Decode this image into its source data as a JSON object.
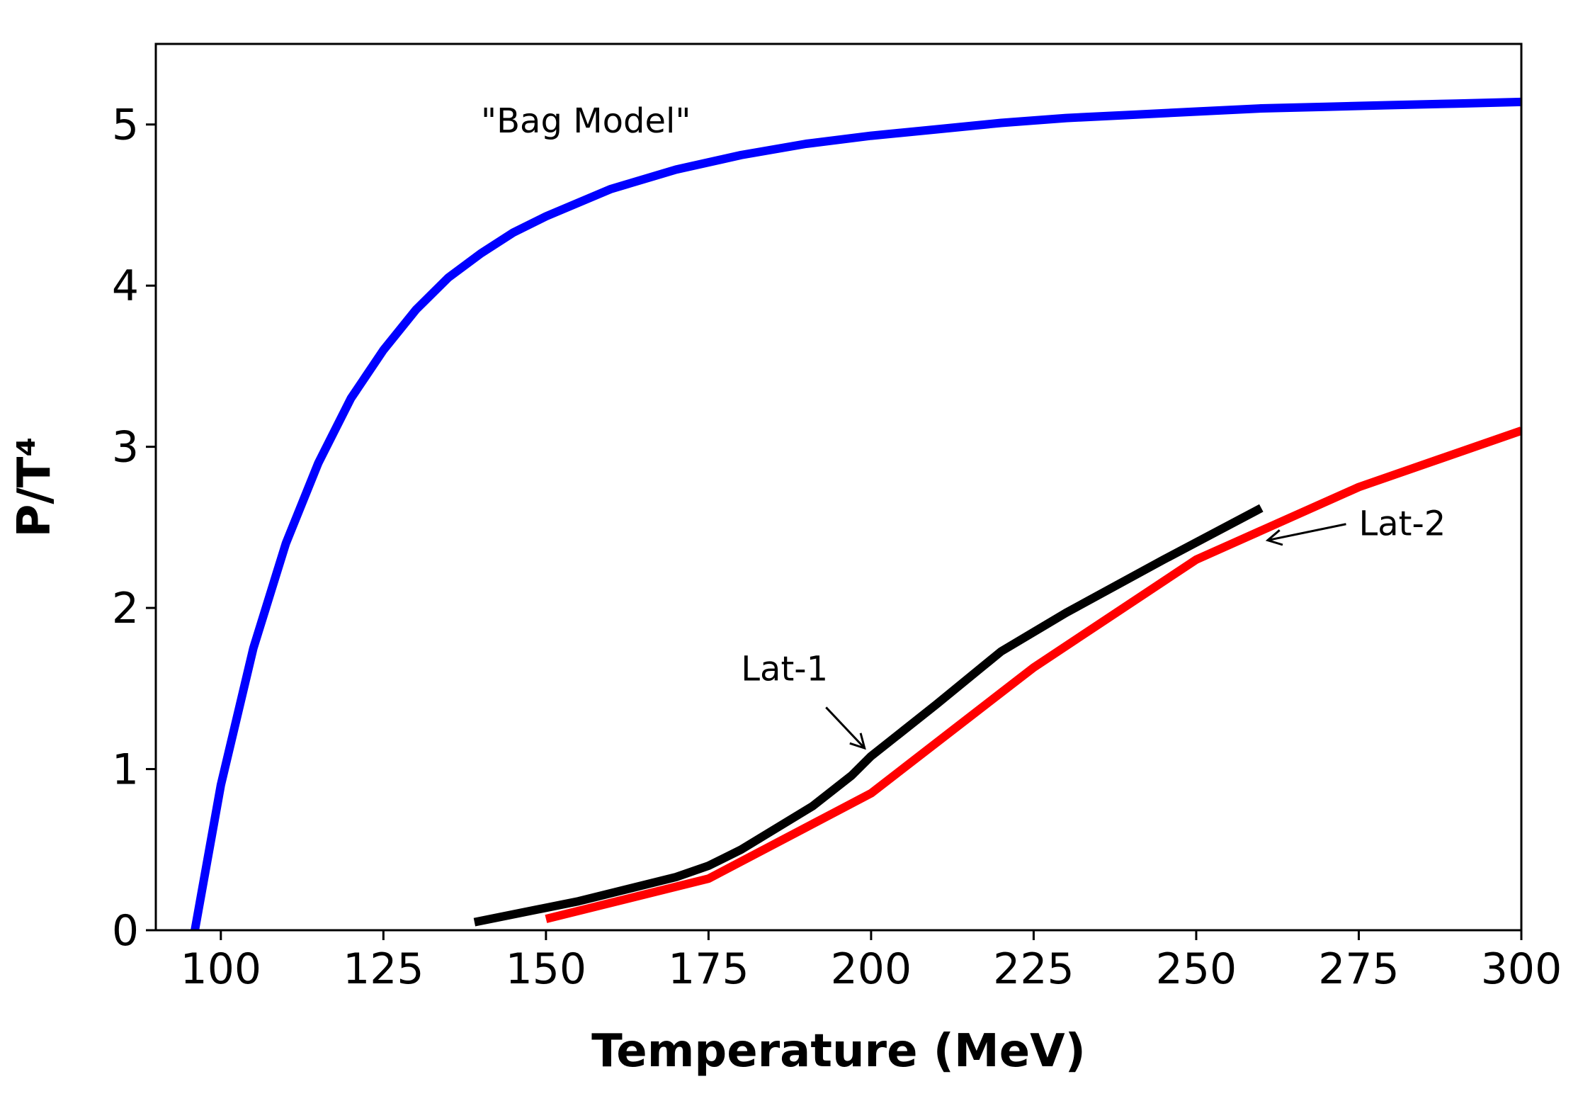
{
  "chart_data": {
    "type": "line",
    "title": "",
    "xlabel": "Temperature (MeV)",
    "ylabel": "P/T⁴",
    "xlim": [
      90,
      300
    ],
    "ylim": [
      0,
      5.5
    ],
    "x_ticks": [
      100,
      125,
      150,
      175,
      200,
      225,
      250,
      275,
      300
    ],
    "y_ticks": [
      0,
      1,
      2,
      3,
      4,
      5
    ],
    "grid": false,
    "series": [
      {
        "name": "\"Bag Model\"",
        "color": "#0000ff",
        "x": [
          96,
          100,
          105,
          110,
          115,
          120,
          125,
          130,
          135,
          140,
          145,
          150,
          160,
          170,
          180,
          190,
          200,
          210,
          220,
          230,
          240,
          250,
          260,
          270,
          280,
          290,
          300
        ],
        "y": [
          0.0,
          0.9,
          1.75,
          2.4,
          2.9,
          3.3,
          3.6,
          3.85,
          4.05,
          4.2,
          4.33,
          4.43,
          4.6,
          4.72,
          4.81,
          4.88,
          4.93,
          4.97,
          5.01,
          5.04,
          5.06,
          5.08,
          5.1,
          5.11,
          5.12,
          5.13,
          5.14
        ]
      },
      {
        "name": "Lat-1",
        "color": "#000000",
        "x": [
          139,
          155,
          170,
          175,
          180,
          191,
          197,
          200,
          210,
          220,
          230,
          245,
          260
        ],
        "y": [
          0.05,
          0.18,
          0.33,
          0.4,
          0.5,
          0.77,
          0.96,
          1.08,
          1.4,
          1.73,
          1.97,
          2.3,
          2.62
        ]
      },
      {
        "name": "Lat-2",
        "color": "#ff0000",
        "x": [
          150,
          175,
          200,
          225,
          250,
          275,
          300
        ],
        "y": [
          0.07,
          0.32,
          0.85,
          1.63,
          2.3,
          2.75,
          3.1
        ]
      }
    ],
    "annotations": [
      {
        "text": "\"Bag Model\"",
        "x": 140,
        "y": 4.95
      },
      {
        "text": "Lat-1",
        "x": 180,
        "y": 1.55,
        "arrow_to": [
          199,
          1.13
        ]
      },
      {
        "text": "Lat-2",
        "x": 275,
        "y": 2.45,
        "arrow_to": [
          261,
          2.42
        ]
      }
    ]
  }
}
